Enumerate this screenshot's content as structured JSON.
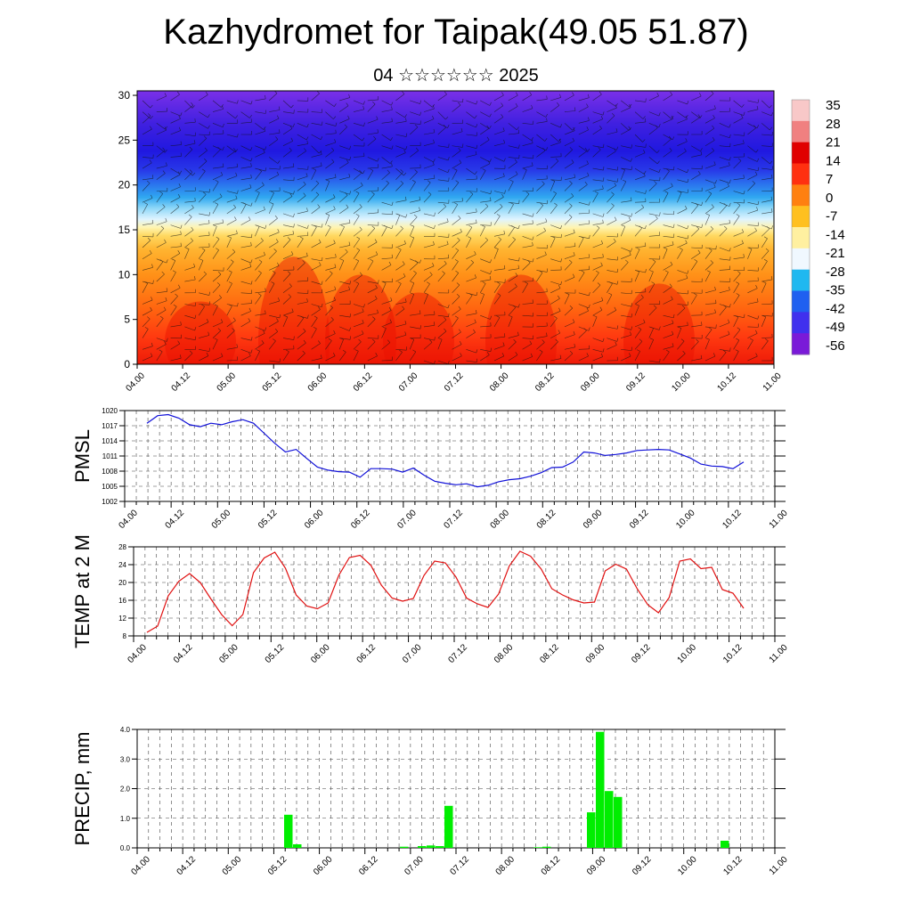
{
  "header": {
    "title": "Kazhydromet for Taipak(49.05 51.87)",
    "subtitle": "04 ☆☆☆☆☆☆ 2025"
  },
  "colors": {
    "pmsl_line": "#1010d8",
    "temp_line": "#e01010",
    "precip_bar": "#00ee00",
    "colorbar_stops": [
      "#7a1ad8",
      "#4030ee",
      "#2060f0",
      "#20b8f0",
      "#f0f8ff",
      "#fff0a0",
      "#ffc020",
      "#ff8010",
      "#ff3010",
      "#e00000",
      "#f08080",
      "#f8c8c8"
    ]
  },
  "chart_data": [
    {
      "type": "heatmap",
      "title": "",
      "ylim": [
        0,
        30.5
      ],
      "yticks": [
        "0",
        "5",
        "10",
        "15",
        "20",
        "25",
        "30"
      ],
      "x_tick_labels": [
        "04.00",
        "04.12",
        "05.00",
        "05.12",
        "06.00",
        "06.12",
        "07.00",
        "07.12",
        "08.00",
        "08.12",
        "09.00",
        "09.12",
        "10.00",
        "10.12",
        "11.00"
      ],
      "colorbar_labels": [
        "35",
        "28",
        "21",
        "14",
        "7",
        "0",
        "-7",
        "-14",
        "-21",
        "-28",
        "-35",
        "-42",
        "-49",
        "-56"
      ],
      "overlay": "wind barbs"
    },
    {
      "type": "line",
      "ylabel": "PMSL",
      "ylim": [
        1002,
        1020
      ],
      "yticks": [
        "1002",
        "1005",
        "1008",
        "1011",
        "1014",
        "1017",
        "1020"
      ],
      "x_tick_labels": [
        "04.00",
        "04.12",
        "05.00",
        "05.12",
        "06.00",
        "06.12",
        "07.00",
        "07.12",
        "08.00",
        "08.12",
        "09.00",
        "09.12",
        "10.00",
        "10.12",
        "11.00"
      ],
      "grid": true,
      "values": [
        1017.5,
        1019,
        1019.2,
        1018.5,
        1017.2,
        1016.8,
        1017.5,
        1017.2,
        1017.8,
        1018.2,
        1017.5,
        1015.5,
        1013.5,
        1011.8,
        1012.3,
        1010.5,
        1008.8,
        1008.2,
        1007.9,
        1007.8,
        1006.8,
        1008.5,
        1008.5,
        1008.4,
        1007.8,
        1008.6,
        1007.2,
        1006.0,
        1005.6,
        1005.3,
        1005.5,
        1004.9,
        1005.2,
        1005.9,
        1006.3,
        1006.5,
        1007.0,
        1007.7,
        1008.7,
        1008.8,
        1009.8,
        1011.8,
        1011.6,
        1011.1,
        1011.3,
        1011.6,
        1012.1,
        1012.2,
        1012.3,
        1012.2,
        1011.4,
        1010.6,
        1009.4,
        1009.0,
        1008.9,
        1008.5,
        1009.8
      ]
    },
    {
      "type": "line",
      "ylabel": "TEMP at 2 M",
      "ylim": [
        8,
        28
      ],
      "yticks": [
        "8",
        "12",
        "16",
        "20",
        "24",
        "28"
      ],
      "x_tick_labels": [
        "04.00",
        "04.12",
        "05.00",
        "05.12",
        "06.00",
        "06.12",
        "07.00",
        "07.12",
        "08.00",
        "08.12",
        "09.00",
        "09.12",
        "10.00",
        "10.12",
        "11.00"
      ],
      "grid": true,
      "values": [
        8.8,
        10.2,
        17.0,
        20.3,
        22.0,
        20.0,
        16.3,
        12.8,
        10.3,
        12.8,
        22.2,
        25.5,
        26.8,
        23.2,
        17.2,
        14.7,
        14.1,
        15.4,
        21.6,
        25.6,
        26.1,
        23.9,
        19.4,
        16.5,
        15.8,
        16.4,
        21.6,
        24.8,
        24.4,
        21.2,
        16.5,
        15.2,
        14.4,
        17.4,
        23.7,
        27.0,
        25.9,
        23.0,
        18.6,
        17.2,
        16.1,
        15.4,
        15.6,
        22.6,
        24.1,
        23.0,
        18.6,
        15.0,
        13.2,
        16.6,
        24.8,
        25.3,
        23.1,
        23.4,
        18.4,
        17.6,
        14.2
      ]
    },
    {
      "type": "bar",
      "ylabel": "PRECIP, mm",
      "ylim": [
        0,
        4.0
      ],
      "yticks": [
        "0.0",
        "1.0",
        "2.0",
        "3.0",
        "4.0"
      ],
      "x_tick_labels": [
        "04.00",
        "04.12",
        "05.00",
        "05.12",
        "06.00",
        "06.12",
        "07.00",
        "07.12",
        "08.00",
        "08.12",
        "09.00",
        "09.12",
        "10.00",
        "10.12",
        "11.00"
      ],
      "grid": true,
      "values": [
        0,
        0,
        0,
        0,
        0,
        0,
        0,
        0,
        0,
        0,
        0,
        0,
        0,
        0,
        0,
        0,
        1.12,
        0.12,
        0,
        0,
        0,
        0,
        0,
        0,
        0,
        0,
        0,
        0,
        0,
        0.04,
        0,
        0.06,
        0.08,
        0.06,
        1.42,
        0,
        0,
        0,
        0,
        0,
        0,
        0,
        0,
        0,
        0.02,
        0.04,
        0,
        0,
        0,
        0,
        1.2,
        3.92,
        1.92,
        1.72,
        0,
        0,
        0,
        0,
        0,
        0,
        0,
        0,
        0,
        0,
        0,
        0.24,
        0,
        0,
        0,
        0,
        0
      ]
    }
  ]
}
